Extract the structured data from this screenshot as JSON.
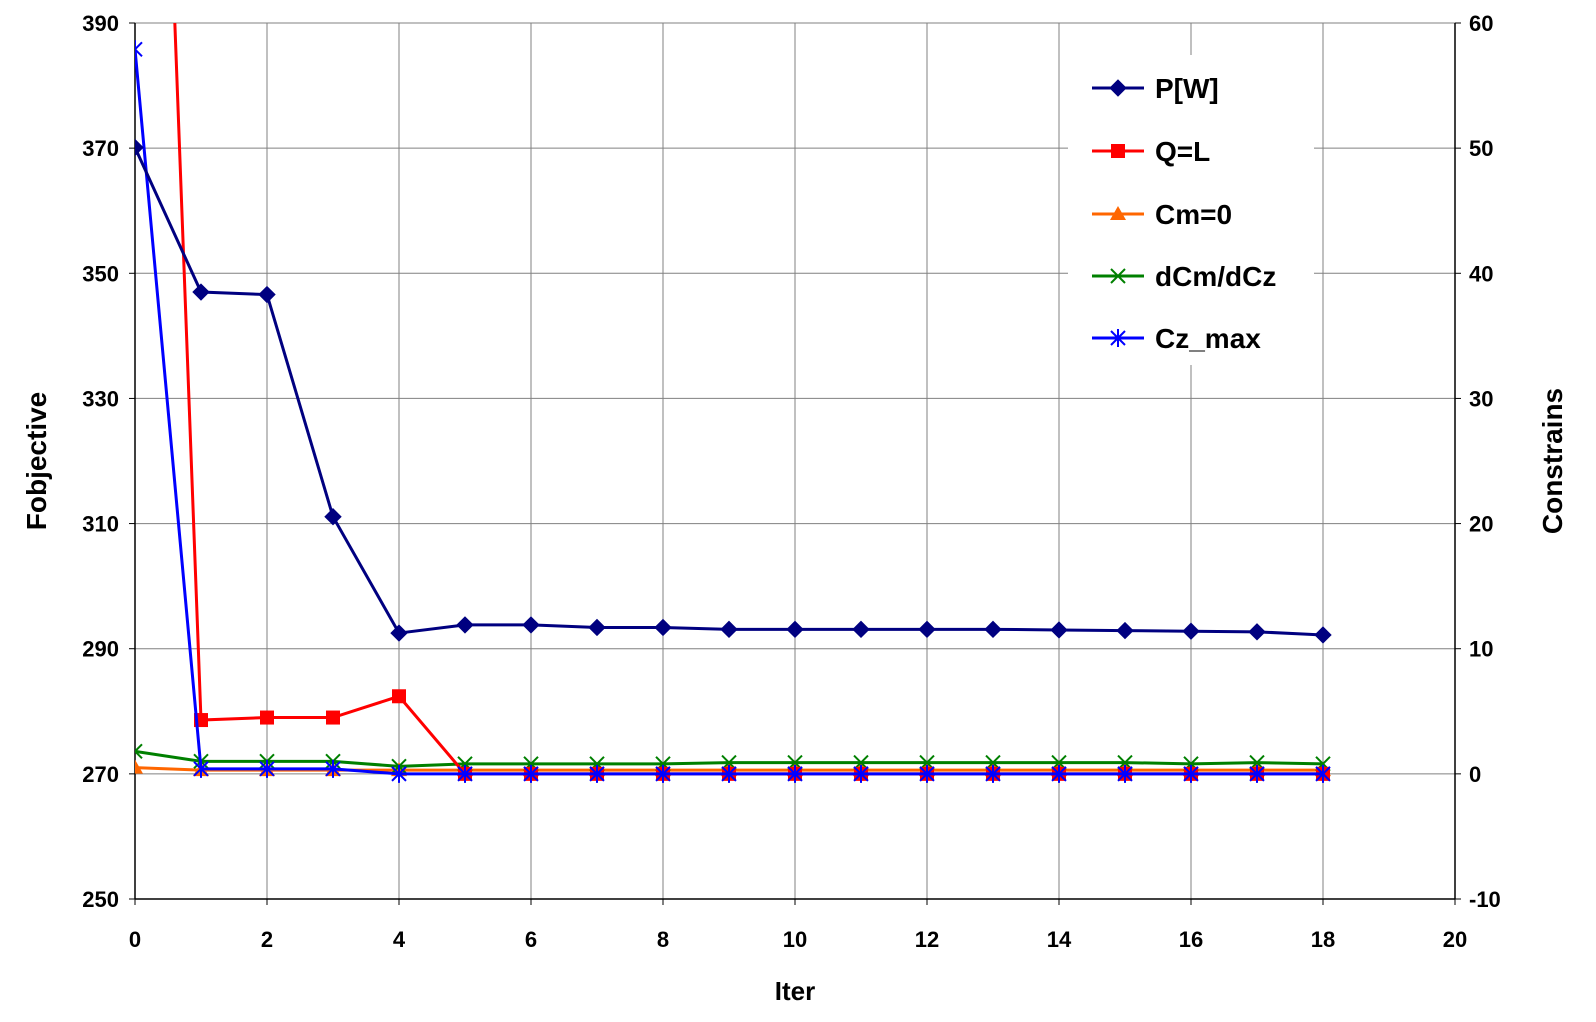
{
  "chart_data": {
    "type": "line",
    "title": "",
    "xlabel": "Iter",
    "ylabel": "Fobjective",
    "y2label": "Constrains",
    "xlim": [
      0,
      20
    ],
    "ylim": [
      250,
      390
    ],
    "y2lim": [
      -10,
      60
    ],
    "xticks": [
      "0",
      "2",
      "4",
      "6",
      "8",
      "10",
      "12",
      "14",
      "16",
      "18",
      "20"
    ],
    "yticks": [
      "250",
      "270",
      "290",
      "310",
      "330",
      "350",
      "370",
      "390"
    ],
    "y2ticks": [
      "-10",
      "0",
      "10",
      "20",
      "30",
      "40",
      "50",
      "60"
    ],
    "grid": true,
    "legend_position": "top-right",
    "series": [
      {
        "name": "P[W]",
        "axis": "left",
        "color": "#000080",
        "marker": "diamond",
        "x": [
          0,
          1,
          2,
          3,
          4,
          5,
          6,
          7,
          8,
          9,
          10,
          11,
          12,
          13,
          14,
          15,
          16,
          17,
          18
        ],
        "values": [
          370.1,
          347.0,
          346.6,
          311.1,
          292.5,
          293.8,
          293.8,
          293.4,
          293.4,
          293.1,
          293.1,
          293.1,
          293.1,
          293.1,
          293.0,
          292.9,
          292.8,
          292.7,
          292.2
        ]
      },
      {
        "name": "Q=L",
        "axis": "right",
        "color": "#ff0000",
        "marker": "square",
        "x": [
          0.6,
          1,
          2,
          3,
          4,
          5,
          6,
          7,
          8,
          9,
          10,
          11,
          12,
          13,
          14,
          15,
          16,
          17,
          18
        ],
        "values": [
          60.5,
          4.3,
          4.5,
          4.5,
          6.2,
          0.0,
          0.0,
          0.0,
          0.0,
          0.0,
          0.0,
          0.0,
          0.0,
          0.0,
          0.0,
          0.0,
          0.0,
          0.0,
          0.0
        ]
      },
      {
        "name": "Cm=0",
        "axis": "right",
        "color": "#ff6600",
        "marker": "triangle",
        "x": [
          0,
          1,
          2,
          3,
          4,
          5,
          6,
          7,
          8,
          9,
          10,
          11,
          12,
          13,
          14,
          15,
          16,
          17,
          18
        ],
        "values": [
          0.5,
          0.3,
          0.3,
          0.3,
          0.3,
          0.3,
          0.3,
          0.3,
          0.3,
          0.3,
          0.3,
          0.3,
          0.3,
          0.3,
          0.3,
          0.3,
          0.3,
          0.3,
          0.3
        ]
      },
      {
        "name": "dCm/dCz",
        "axis": "right",
        "color": "#008000",
        "marker": "x",
        "x": [
          0,
          1,
          2,
          3,
          4,
          5,
          6,
          7,
          8,
          9,
          10,
          11,
          12,
          13,
          14,
          15,
          16,
          17,
          18
        ],
        "values": [
          1.8,
          1.0,
          1.0,
          1.0,
          0.6,
          0.8,
          0.8,
          0.8,
          0.8,
          0.9,
          0.9,
          0.9,
          0.9,
          0.9,
          0.9,
          0.9,
          0.8,
          0.9,
          0.8
        ]
      },
      {
        "name": "Cz_max",
        "axis": "right",
        "color": "#0000ff",
        "marker": "star",
        "x": [
          0,
          1,
          2,
          3,
          4,
          5,
          6,
          7,
          8,
          9,
          10,
          11,
          12,
          13,
          14,
          15,
          16,
          17,
          18
        ],
        "values": [
          57.9,
          0.4,
          0.4,
          0.4,
          0.0,
          0.0,
          0.0,
          0.0,
          0.0,
          0.0,
          0.0,
          0.0,
          0.0,
          0.0,
          0.0,
          0.0,
          0.0,
          0.0,
          0.0
        ]
      }
    ]
  }
}
